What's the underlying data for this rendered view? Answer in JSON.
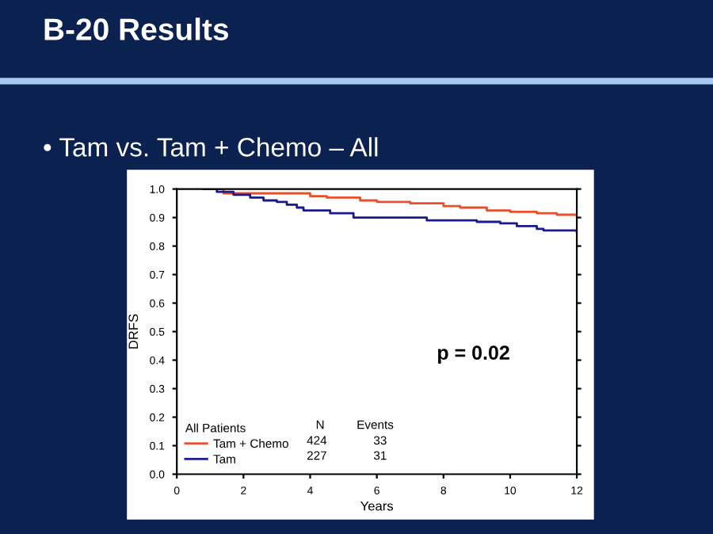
{
  "chart_data": {
    "type": "step",
    "title": "B-20 Results",
    "subtitle": "• Tam vs. Tam + Chemo – All",
    "xlabel": "Years",
    "ylabel": "DRFS",
    "legend_title": "All Patients",
    "series": [
      {
        "name": "Tam + Chemo",
        "color": "#e8502a",
        "x": [
          0.8,
          1.4,
          4.0,
          4.5,
          5.5,
          6.0,
          7.0,
          8.0,
          8.5,
          9.3,
          10.0,
          10.8,
          11.4,
          12.0
        ],
        "values": [
          1.0,
          0.985,
          0.975,
          0.97,
          0.96,
          0.955,
          0.95,
          0.94,
          0.935,
          0.925,
          0.92,
          0.915,
          0.91,
          0.905
        ]
      },
      {
        "name": "Tam",
        "color": "#1a1a8c",
        "x": [
          0.8,
          1.2,
          1.7,
          2.2,
          2.6,
          3.0,
          3.3,
          3.6,
          3.8,
          4.6,
          5.3,
          7.5,
          9.0,
          9.7,
          10.2,
          10.8,
          11.0,
          12.0
        ],
        "values": [
          1.0,
          0.99,
          0.98,
          0.97,
          0.96,
          0.955,
          0.945,
          0.935,
          0.925,
          0.915,
          0.9,
          0.89,
          0.885,
          0.88,
          0.87,
          0.86,
          0.855,
          0.85
        ]
      }
    ],
    "xlim": [
      0,
      12
    ],
    "xticks": [
      0,
      2,
      4,
      6,
      8,
      10,
      12
    ],
    "ylim": [
      0,
      1
    ],
    "yticks": [
      {
        "value": 0,
        "label": "0.0"
      },
      0.1,
      0.2,
      0.3,
      0.4,
      0.5,
      0.6,
      0.7,
      0.8,
      0.9,
      {
        "value": 1,
        "label": "1.0"
      }
    ],
    "annotations": [
      "p = 0.02",
      "N",
      "Events",
      "424",
      "33",
      "227",
      "31"
    ],
    "legend": "bottom left",
    "grid": false
  }
}
